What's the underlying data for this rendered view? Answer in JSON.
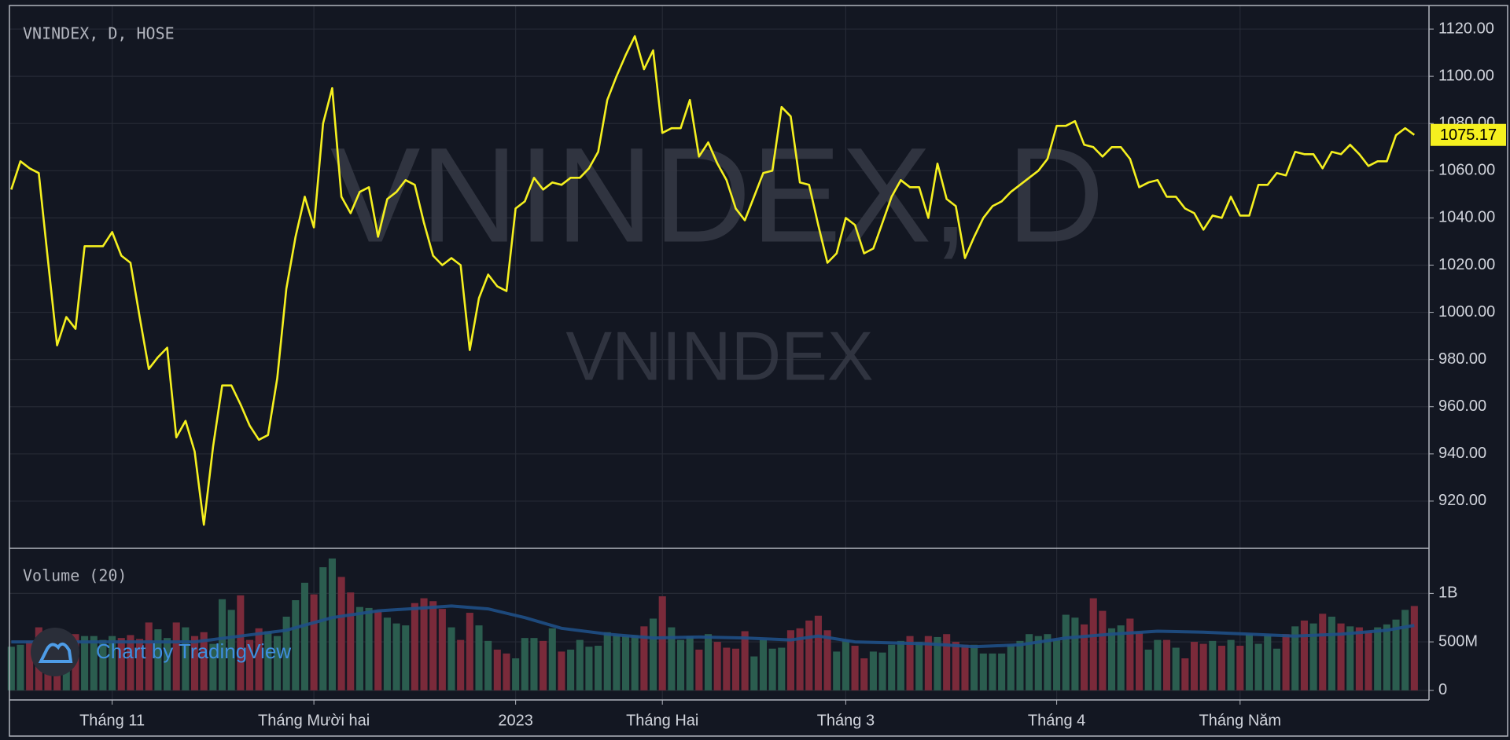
{
  "branding": "Chart by TradingView",
  "chart_data": [
    {
      "type": "price-line",
      "title": "VNINDEX, D, HOSE",
      "watermark": "VNINDEX, D",
      "watermark_sub": "VNINDEX",
      "color": "#f5f01f",
      "grid": true,
      "values": [
        1052,
        1064,
        1061,
        1059,
        1022,
        986,
        998,
        993,
        1028,
        1028,
        1028,
        1034,
        1024,
        1021,
        998,
        976,
        981,
        985,
        947,
        954,
        941,
        910,
        943,
        969,
        969,
        961,
        952,
        946,
        948,
        972,
        1010,
        1032,
        1049,
        1036,
        1080,
        1095,
        1049,
        1042,
        1051,
        1053,
        1032,
        1048,
        1051,
        1056,
        1054,
        1038,
        1024,
        1020,
        1023,
        1020,
        984,
        1006,
        1016,
        1011,
        1009,
        1044,
        1047,
        1057,
        1052,
        1055,
        1054,
        1057,
        1057,
        1061,
        1068,
        1090,
        1100,
        1109,
        1117,
        1103,
        1111,
        1076,
        1078,
        1078,
        1090,
        1066,
        1072,
        1063,
        1056,
        1044,
        1039,
        1049,
        1059,
        1060,
        1087,
        1083,
        1055,
        1054,
        1037,
        1021,
        1025,
        1040,
        1037,
        1025,
        1027,
        1038,
        1049,
        1056,
        1053,
        1053,
        1040,
        1063,
        1048,
        1045,
        1023,
        1032,
        1040,
        1045,
        1047,
        1051,
        1054,
        1057,
        1060,
        1065,
        1079,
        1079,
        1081,
        1071,
        1070,
        1066,
        1070,
        1070,
        1065,
        1053,
        1055,
        1056,
        1049,
        1049,
        1044,
        1042,
        1035,
        1041,
        1040,
        1049,
        1041,
        1041,
        1054,
        1054,
        1059,
        1058,
        1068,
        1067,
        1067,
        1061,
        1068,
        1067,
        1071,
        1067,
        1062,
        1064,
        1064,
        1075,
        1078,
        1075.17
      ],
      "xlim": [
        -0.2,
        154.6
      ],
      "ylim": [
        900,
        1130
      ],
      "yticks": [
        {
          "value": 920,
          "label": "920.00"
        },
        {
          "value": 940,
          "label": "940.00"
        },
        {
          "value": 960,
          "label": "960.00"
        },
        {
          "value": 980,
          "label": "980.00"
        },
        {
          "value": 1000,
          "label": "1000.00"
        },
        {
          "value": 1020,
          "label": "1020.00"
        },
        {
          "value": 1040,
          "label": "1040.00"
        },
        {
          "value": 1060,
          "label": "1060.00"
        },
        {
          "value": 1080,
          "label": "1080.00"
        },
        {
          "value": 1100,
          "label": "1100.00"
        },
        {
          "value": 1120,
          "label": "1120.00"
        }
      ]
    },
    {
      "type": "volume",
      "title": "Volume (20)",
      "up_color": "#2b5d4f",
      "down_color": "#7a2a3a",
      "grid": true,
      "values": [
        450,
        470,
        510,
        650,
        560,
        420,
        520,
        580,
        560,
        560,
        520,
        560,
        540,
        570,
        530,
        700,
        630,
        540,
        700,
        650,
        560,
        600,
        480,
        940,
        830,
        980,
        520,
        640,
        610,
        560,
        760,
        930,
        1110,
        990,
        1270,
        1360,
        1170,
        1010,
        860,
        850,
        820,
        750,
        690,
        670,
        900,
        950,
        920,
        840,
        650,
        520,
        800,
        670,
        510,
        420,
        380,
        330,
        540,
        540,
        510,
        640,
        400,
        420,
        520,
        450,
        460,
        600,
        570,
        560,
        570,
        660,
        740,
        970,
        650,
        520,
        560,
        420,
        580,
        500,
        440,
        430,
        610,
        350,
        520,
        430,
        440,
        620,
        640,
        720,
        770,
        620,
        400,
        520,
        460,
        330,
        400,
        390,
        470,
        510,
        560,
        500,
        560,
        550,
        580,
        500,
        470,
        470,
        380,
        380,
        380,
        470,
        510,
        580,
        560,
        580,
        520,
        780,
        750,
        680,
        950,
        820,
        640,
        670,
        740,
        600,
        420,
        520,
        520,
        440,
        330,
        500,
        480,
        510,
        460,
        520,
        460,
        580,
        480,
        570,
        430,
        580,
        660,
        720,
        690,
        790,
        760,
        690,
        660,
        650,
        610,
        650,
        680,
        730,
        830,
        870
      ],
      "ma": {
        "color": "#1f4f86",
        "x": [
          0,
          20,
          25,
          30,
          35,
          40,
          45,
          48,
          52,
          56,
          60,
          65,
          70,
          75,
          80,
          85,
          88,
          92,
          100,
          105,
          110,
          115,
          120,
          125,
          130,
          135,
          140,
          145,
          150,
          153
        ],
        "values": [
          500,
          500,
          560,
          620,
          750,
          820,
          850,
          870,
          840,
          750,
          640,
          580,
          540,
          550,
          540,
          520,
          560,
          500,
          480,
          450,
          470,
          540,
          580,
          610,
          600,
          580,
          560,
          580,
          620,
          670
        ]
      },
      "xlim": [
        -0.2,
        154.6
      ],
      "ylim": [
        -99,
        1465
      ],
      "yticks": [
        0,
        {
          "value": 500,
          "label": "500M"
        },
        {
          "value": 1000,
          "label": "1B"
        }
      ],
      "xticks": [
        {
          "value": 11,
          "label": "Tháng 11"
        },
        {
          "value": 33,
          "label": "Tháng Mười hai"
        },
        {
          "value": 55,
          "label": "2023"
        },
        {
          "value": 71,
          "label": "Tháng Hai"
        },
        {
          "value": 91,
          "label": "Tháng 3"
        },
        {
          "value": 114,
          "label": "Tháng 4"
        },
        {
          "value": 134,
          "label": "Tháng Năm"
        }
      ]
    }
  ]
}
